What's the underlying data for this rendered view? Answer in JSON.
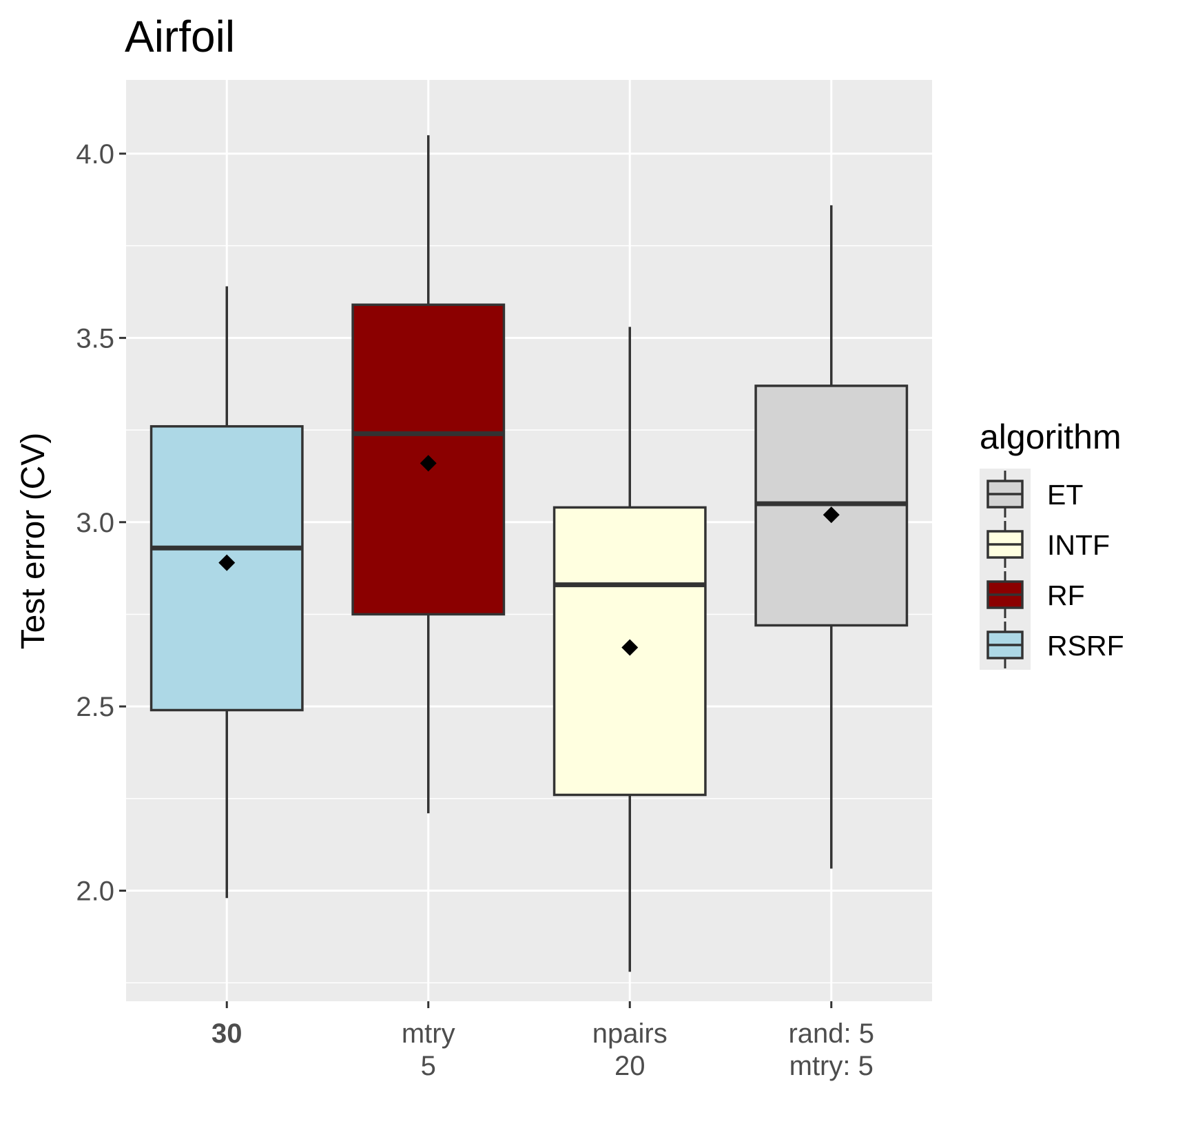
{
  "chart_data": {
    "type": "box",
    "title": "Airfoil",
    "xlabel": "",
    "ylabel": "Test error (CV)",
    "ylim": [
      1.7,
      4.2
    ],
    "yticks": [
      "2.0",
      "2.5",
      "3.0",
      "3.5",
      "4.0"
    ],
    "ytick_values": [
      2.0,
      2.5,
      3.0,
      3.5,
      4.0
    ],
    "grid": true,
    "legend": {
      "title": "algorithm",
      "position": "right",
      "entries": [
        {
          "name": "ET",
          "color": "#d3d3d3"
        },
        {
          "name": "INTF",
          "color": "#ffffe0"
        },
        {
          "name": "RF",
          "color": "#8b0000"
        },
        {
          "name": "RSRF",
          "color": "#add8e6"
        }
      ]
    },
    "categories": [
      {
        "lines": [
          "30"
        ],
        "bold": true
      },
      {
        "lines": [
          "mtry",
          "5"
        ],
        "bold": false
      },
      {
        "lines": [
          "npairs",
          "20"
        ],
        "bold": false
      },
      {
        "lines": [
          "rand: 5",
          "mtry: 5"
        ],
        "bold": false
      }
    ],
    "boxes": [
      {
        "algorithm": "RSRF",
        "color": "#add8e6",
        "whisker_low": 1.98,
        "q1": 2.49,
        "median": 2.93,
        "q3": 3.26,
        "whisker_high": 3.64,
        "mean": 2.89
      },
      {
        "algorithm": "RF",
        "color": "#8b0000",
        "whisker_low": 2.21,
        "q1": 2.75,
        "median": 3.24,
        "q3": 3.59,
        "whisker_high": 4.05,
        "mean": 3.16
      },
      {
        "algorithm": "INTF",
        "color": "#ffffe0",
        "whisker_low": 1.78,
        "q1": 2.26,
        "median": 2.83,
        "q3": 3.04,
        "whisker_high": 3.53,
        "mean": 2.66
      },
      {
        "algorithm": "ET",
        "color": "#d3d3d3",
        "whisker_low": 2.06,
        "q1": 2.72,
        "median": 3.05,
        "q3": 3.37,
        "whisker_high": 3.86,
        "mean": 3.02
      }
    ]
  }
}
